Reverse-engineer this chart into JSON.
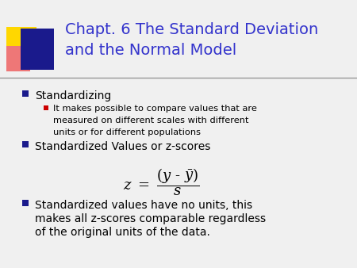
{
  "title_line1": "Chapt. 6 The Standard Deviation",
  "title_line2": "and the Normal Model",
  "title_color": "#3333cc",
  "background_color": "#f0f0f0",
  "bullet1": "Standardizing",
  "bullet1_color": "#000000",
  "bullet1_marker_color": "#1a1a8c",
  "sub_bullet1_lines": [
    "It makes possible to compare values that are",
    "measured on different scales with different",
    "units or for different populations"
  ],
  "sub_bullet1_color": "#000000",
  "sub_bullet1_marker_color": "#cc0000",
  "bullet2": "Standardized Values or z-scores",
  "bullet2_color": "#000000",
  "bullet2_marker_color": "#1a1a8c",
  "bullet3_lines": [
    "Standardized values have no units, this",
    "makes all z-scores comparable regardless",
    "of the original units of the data."
  ],
  "bullet3_color": "#000000",
  "bullet3_marker_color": "#1a1a8c",
  "divider_color": "#999999",
  "logo_yellow": "#FFD700",
  "logo_blue": "#1a1a8c",
  "logo_red": "#ee3333",
  "logo_pink": "#ee7777"
}
